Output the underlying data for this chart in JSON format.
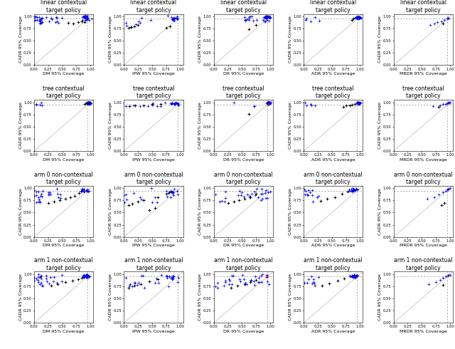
{
  "rows": [
    "linear contextual\ntarget policy",
    "tree contextual\ntarget policy",
    "arm 0 non-contextual\ntarget policy",
    "arm 1 non-contextual\ntarget policy"
  ],
  "cols": [
    "DM 95% Coverage",
    "IPW 95% Coverage",
    "DR 95% Coverage",
    "ADR 95% Coverage",
    "MRDR 95% Coverage"
  ],
  "ylabel": "CADR 95% Coverage",
  "hline": 0.95,
  "vline": 0.95,
  "diagonal_color": "#bbbbbb",
  "ref_line_color": "#888888",
  "blue_color": "#0000dd",
  "black_color": "#000000",
  "red_color": "#dd0000",
  "title_fontsize": 5.5,
  "label_fontsize": 4.5,
  "tick_fontsize": 3.8
}
